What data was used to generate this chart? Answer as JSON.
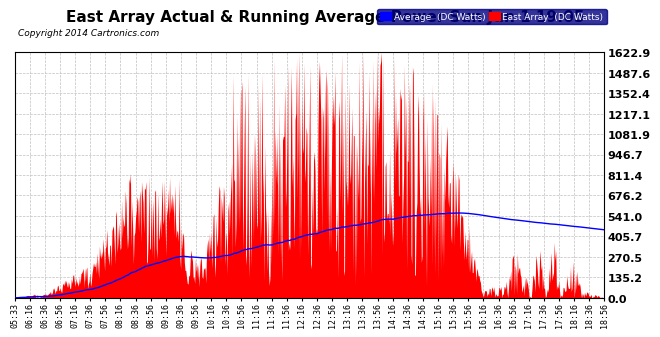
{
  "title": "East Array Actual & Running Average Power Sun Jun 1 19:05",
  "copyright": "Copyright 2014 Cartronics.com",
  "legend_avg": "Average  (DC Watts)",
  "legend_east": "East Array  (DC Watts)",
  "ymax": 1622.9,
  "yticks": [
    0.0,
    135.2,
    270.5,
    405.7,
    541.0,
    676.2,
    811.4,
    946.7,
    1081.9,
    1217.1,
    1352.4,
    1487.6,
    1622.9
  ],
  "bg_color": "#ffffff",
  "plot_bg_color": "#ffffff",
  "grid_color": "#c0c0c0",
  "bar_color": "#ff0000",
  "avg_line_color": "#0000ff",
  "title_color": "#000000",
  "copyright_color": "#000000",
  "legend_bg": "#000080",
  "xtick_labels": [
    "05:33",
    "06:16",
    "06:36",
    "06:56",
    "07:16",
    "07:36",
    "07:56",
    "08:16",
    "08:36",
    "08:56",
    "09:16",
    "09:36",
    "09:56",
    "10:16",
    "10:36",
    "10:56",
    "11:16",
    "11:36",
    "11:56",
    "12:16",
    "12:36",
    "12:56",
    "13:16",
    "13:36",
    "13:56",
    "14:16",
    "14:36",
    "14:56",
    "15:16",
    "15:36",
    "15:56",
    "16:16",
    "16:36",
    "16:56",
    "17:16",
    "17:36",
    "17:56",
    "18:16",
    "18:36",
    "18:56"
  ],
  "num_points": 800,
  "title_fontsize": 11,
  "copyright_fontsize": 6.5,
  "ytick_fontsize": 8,
  "xtick_fontsize": 6
}
